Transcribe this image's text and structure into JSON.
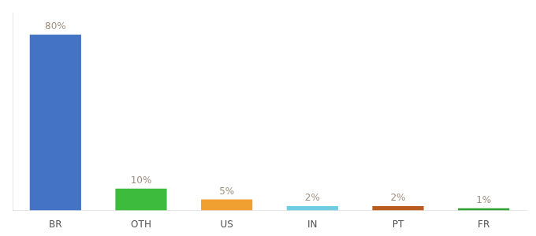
{
  "chart_data": {
    "type": "bar",
    "categories": [
      "BR",
      "OTH",
      "US",
      "IN",
      "PT",
      "FR"
    ],
    "values": [
      80,
      10,
      5,
      2,
      2,
      1
    ],
    "value_labels": [
      "80%",
      "10%",
      "5%",
      "2%",
      "2%",
      "1%"
    ],
    "data_labels": true,
    "colors": [
      "#4472c4",
      "#3dbb3d",
      "#f0a030",
      "#70cce0",
      "#b85c20",
      "#30a030"
    ],
    "ylim": [
      0,
      90
    ],
    "grid": false,
    "tick_labels": "x"
  }
}
